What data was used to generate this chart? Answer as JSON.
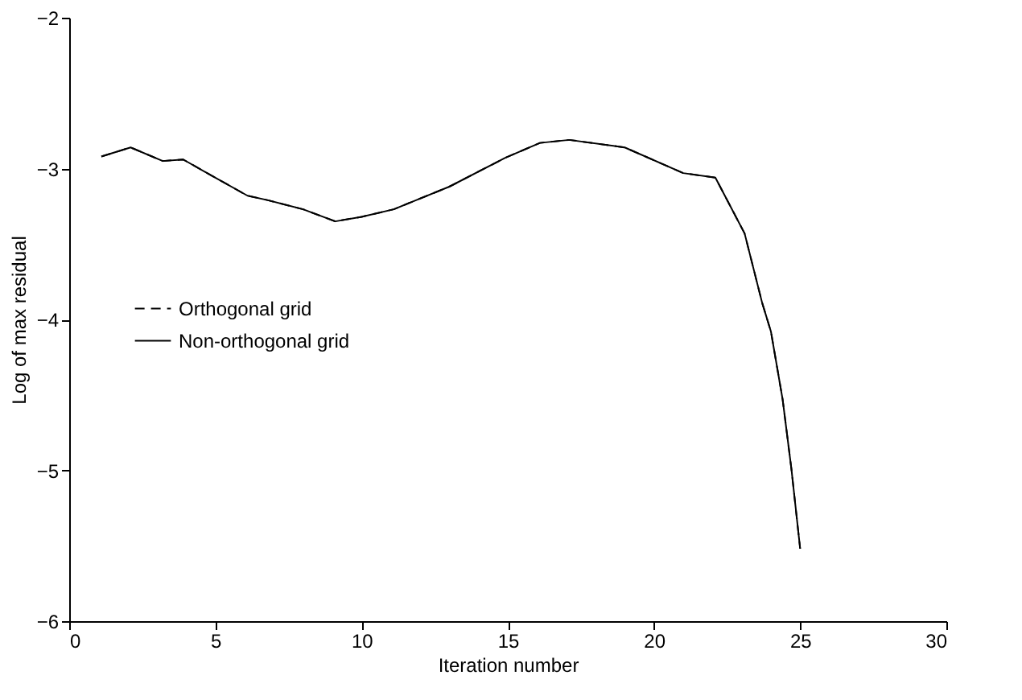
{
  "chart_data": {
    "type": "line",
    "xlabel": "Iteration number",
    "ylabel": "Log of max residual",
    "x": [
      1.1,
      2.1,
      3.2,
      3.9,
      4.9,
      6.1,
      6.8,
      8.0,
      9.1,
      10.0,
      11.1,
      13.0,
      14.9,
      16.1,
      17.1,
      19.0,
      21.0,
      22.1,
      23.1,
      23.7,
      24.0,
      24.4,
      24.7,
      25.0
    ],
    "series": [
      {
        "name": "Orthogonal grid",
        "color": "#000000",
        "line_style": "dashed",
        "values": [
          -2.92,
          -2.86,
          -2.95,
          -2.94,
          -3.05,
          -3.18,
          -3.21,
          -3.27,
          -3.35,
          -3.32,
          -3.27,
          -3.12,
          -2.93,
          -2.83,
          -2.81,
          -2.86,
          -3.03,
          -3.06,
          -3.43,
          -3.89,
          -4.08,
          -4.53,
          -4.99,
          -5.52
        ]
      },
      {
        "name": "Non-orthogonal grid",
        "color": "#000000",
        "line_style": "solid",
        "values": [
          -2.92,
          -2.86,
          -2.95,
          -2.94,
          -3.05,
          -3.18,
          -3.21,
          -3.27,
          -3.35,
          -3.32,
          -3.27,
          -3.12,
          -2.93,
          -2.83,
          -2.81,
          -2.86,
          -3.03,
          -3.06,
          -3.43,
          -3.89,
          -4.08,
          -4.53,
          -4.99,
          -5.52
        ]
      }
    ],
    "xlim": [
      0,
      30
    ],
    "xticks": [
      0,
      5,
      10,
      15,
      20,
      25,
      30
    ],
    "ylim": [
      -6,
      -2
    ],
    "yticks": [
      -6,
      -5,
      -4,
      -3,
      -2
    ],
    "grid": false,
    "legend": "left",
    "marker": "none"
  }
}
